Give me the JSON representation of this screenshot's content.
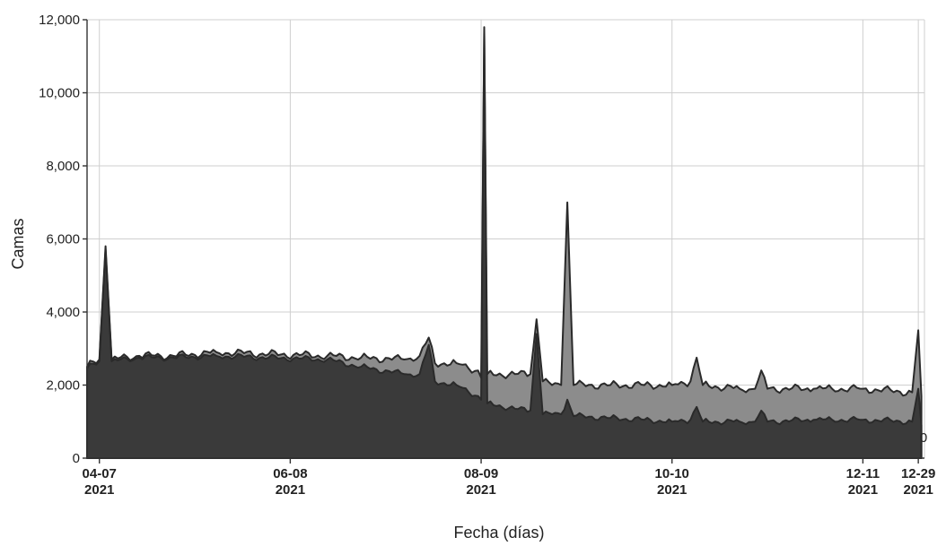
{
  "chart_data": {
    "type": "area",
    "xlabel": "Fecha (días)",
    "ylabel": "Camas",
    "ylim": [
      0,
      12000
    ],
    "yticks": [
      0,
      2000,
      4000,
      6000,
      8000,
      10000,
      12000
    ],
    "ytick_labels": [
      "0",
      "2,000",
      "4,000",
      "6,000",
      "8,000",
      "10,000",
      "12,000"
    ],
    "xlim": [
      "2021-04-03",
      "2021-12-31"
    ],
    "xticks": [
      {
        "date": "2021-04-07",
        "label": "04-07",
        "year": "2021"
      },
      {
        "date": "2021-06-08",
        "label": "06-08",
        "year": "2021"
      },
      {
        "date": "2021-08-09",
        "label": "08-09",
        "year": "2021"
      },
      {
        "date": "2021-10-10",
        "label": "10-10",
        "year": "2021"
      },
      {
        "date": "2021-12-11",
        "label": "12-11",
        "year": "2021"
      },
      {
        "date": "2021-12-29",
        "label": "12-29",
        "year": "2021"
      }
    ],
    "grid": true,
    "end_label": "0",
    "colors": {
      "total": "#8c8c8c",
      "lower": "#3a3a3a",
      "outline": "#2a2a2a",
      "grid": "#cfcfcf"
    },
    "series": [
      {
        "points": [
          [
            "2021-04-03",
            2500
          ],
          [
            "2021-04-07",
            2700
          ],
          [
            "2021-04-09",
            5800
          ],
          [
            "2021-04-11",
            2700
          ],
          [
            "2021-04-20",
            2800
          ],
          [
            "2021-05-01",
            2800
          ],
          [
            "2021-05-15",
            2900
          ],
          [
            "2021-06-01",
            2850
          ],
          [
            "2021-06-20",
            2800
          ],
          [
            "2021-07-01",
            2750
          ],
          [
            "2021-07-15",
            2700
          ],
          [
            "2021-07-20",
            2800
          ],
          [
            "2021-07-23",
            3300
          ],
          [
            "2021-07-25",
            2600
          ],
          [
            "2021-08-01",
            2600
          ],
          [
            "2021-08-08",
            2400
          ],
          [
            "2021-08-09",
            2200
          ],
          [
            "2021-08-10",
            11800
          ],
          [
            "2021-08-11",
            2300
          ],
          [
            "2021-08-20",
            2300
          ],
          [
            "2021-08-25",
            2300
          ],
          [
            "2021-08-27",
            3800
          ],
          [
            "2021-08-29",
            2100
          ],
          [
            "2021-09-01",
            2000
          ],
          [
            "2021-09-04",
            2000
          ],
          [
            "2021-09-06",
            7000
          ],
          [
            "2021-09-08",
            2000
          ],
          [
            "2021-09-20",
            2000
          ],
          [
            "2021-10-01",
            2000
          ],
          [
            "2021-10-10",
            2000
          ],
          [
            "2021-10-16",
            2100
          ],
          [
            "2021-10-18",
            2750
          ],
          [
            "2021-10-20",
            2000
          ],
          [
            "2021-11-01",
            1900
          ],
          [
            "2021-11-06",
            1900
          ],
          [
            "2021-11-08",
            2400
          ],
          [
            "2021-11-10",
            1900
          ],
          [
            "2021-11-25",
            1900
          ],
          [
            "2021-12-01",
            1900
          ],
          [
            "2021-12-11",
            1900
          ],
          [
            "2021-12-27",
            1800
          ],
          [
            "2021-12-29",
            3500
          ],
          [
            "2021-12-30",
            1700
          ]
        ]
      },
      {
        "points": [
          [
            "2021-04-03",
            2450
          ],
          [
            "2021-04-07",
            2650
          ],
          [
            "2021-04-09",
            5700
          ],
          [
            "2021-04-11",
            2650
          ],
          [
            "2021-04-20",
            2750
          ],
          [
            "2021-05-01",
            2750
          ],
          [
            "2021-05-15",
            2800
          ],
          [
            "2021-06-01",
            2750
          ],
          [
            "2021-06-20",
            2700
          ],
          [
            "2021-07-01",
            2500
          ],
          [
            "2021-07-15",
            2300
          ],
          [
            "2021-07-20",
            2300
          ],
          [
            "2021-07-23",
            3100
          ],
          [
            "2021-07-25",
            2100
          ],
          [
            "2021-08-01",
            2000
          ],
          [
            "2021-08-08",
            1700
          ],
          [
            "2021-08-09",
            1600
          ],
          [
            "2021-08-10",
            11700
          ],
          [
            "2021-08-11",
            1500
          ],
          [
            "2021-08-20",
            1350
          ],
          [
            "2021-08-25",
            1300
          ],
          [
            "2021-08-27",
            3400
          ],
          [
            "2021-08-29",
            1200
          ],
          [
            "2021-09-01",
            1200
          ],
          [
            "2021-09-04",
            1200
          ],
          [
            "2021-09-06",
            1600
          ],
          [
            "2021-09-08",
            1150
          ],
          [
            "2021-09-20",
            1100
          ],
          [
            "2021-10-01",
            1050
          ],
          [
            "2021-10-10",
            1000
          ],
          [
            "2021-10-16",
            1050
          ],
          [
            "2021-10-18",
            1400
          ],
          [
            "2021-10-20",
            1000
          ],
          [
            "2021-11-01",
            1000
          ],
          [
            "2021-11-06",
            1000
          ],
          [
            "2021-11-08",
            1300
          ],
          [
            "2021-11-10",
            1000
          ],
          [
            "2021-11-25",
            1050
          ],
          [
            "2021-12-01",
            1050
          ],
          [
            "2021-12-11",
            1050
          ],
          [
            "2021-12-27",
            1000
          ],
          [
            "2021-12-29",
            1900
          ],
          [
            "2021-12-30",
            900
          ]
        ]
      }
    ]
  }
}
